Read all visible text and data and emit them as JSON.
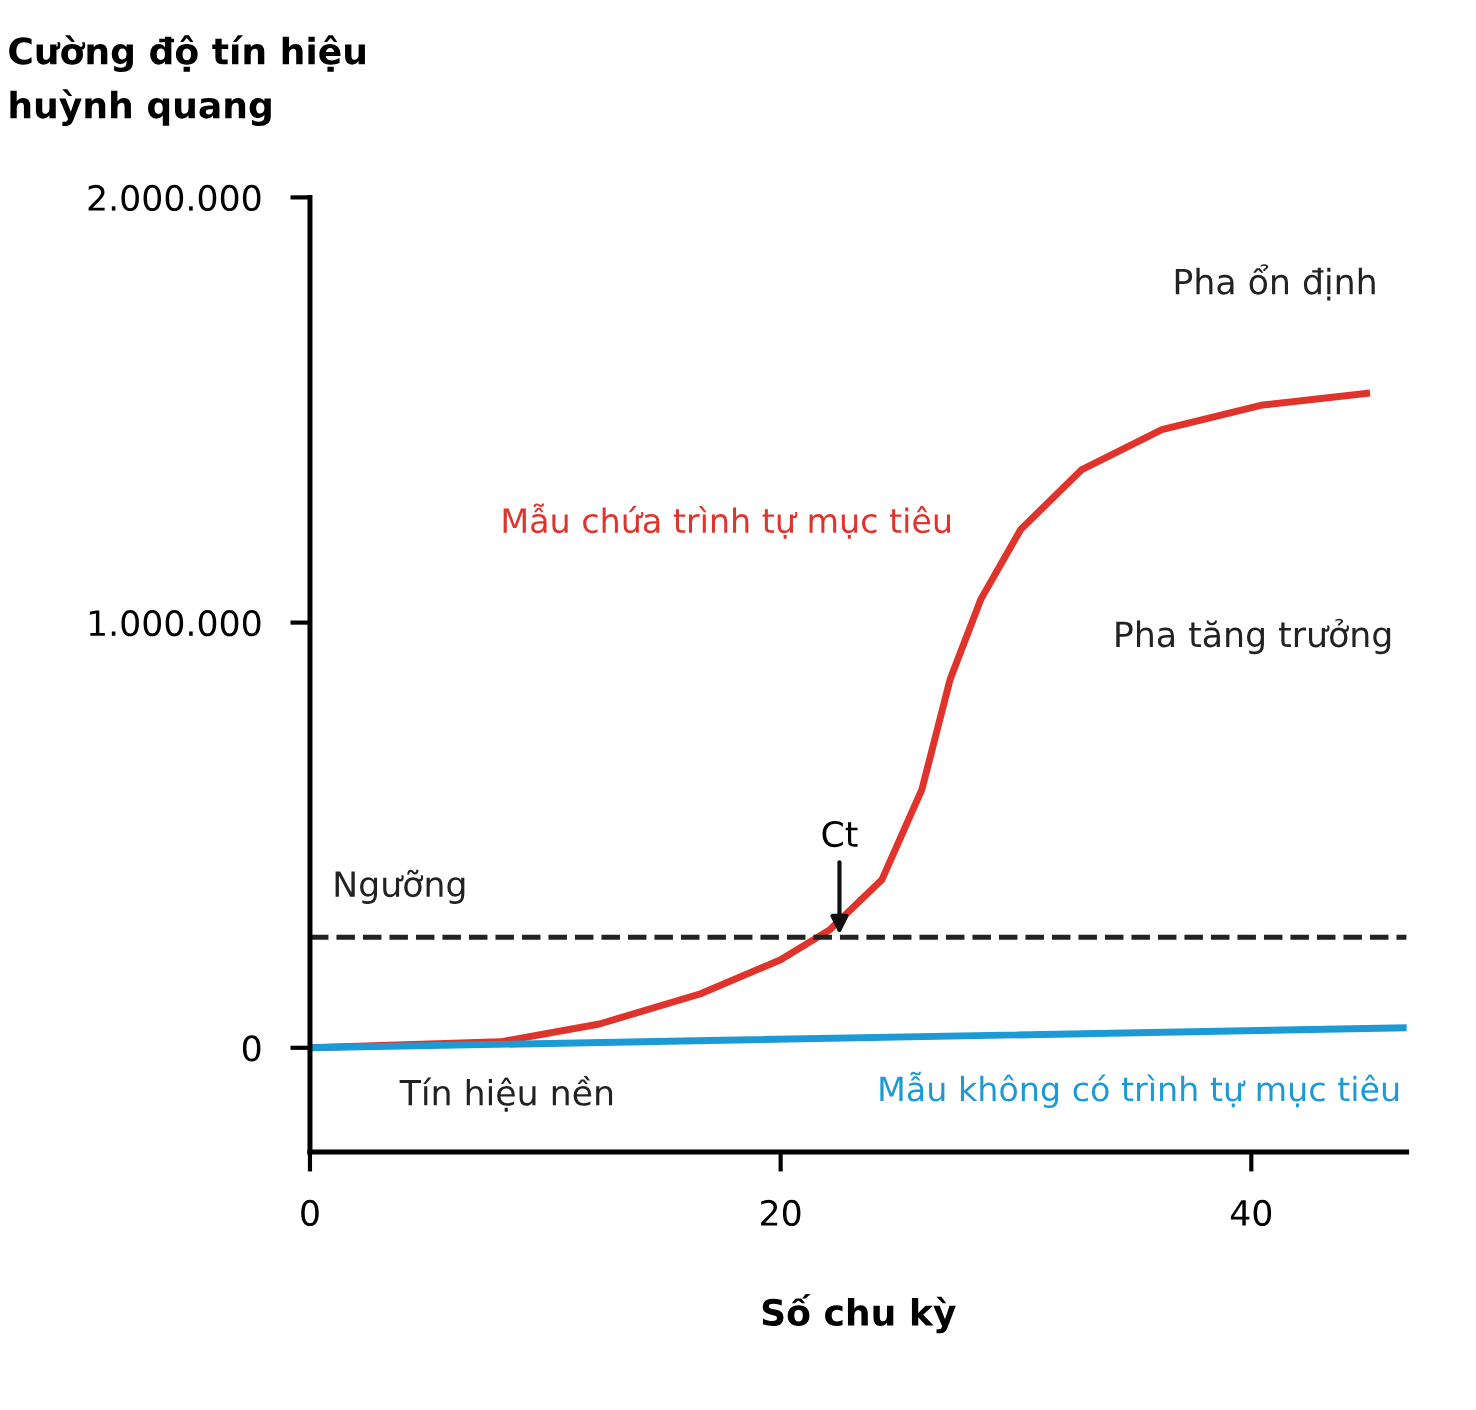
{
  "chart_data": {
    "type": "line",
    "xlabel": "Số chu kỳ",
    "ylabel": "Cường độ tín hiệu\nhuỳnh quang",
    "xlim": [
      0,
      46.6
    ],
    "xticks": [
      0,
      20,
      40
    ],
    "ylim": [
      -245000,
      2000000
    ],
    "yticks": [
      {
        "value": 0,
        "label": "0"
      },
      {
        "value": 1000000,
        "label": "1.000.000"
      },
      {
        "value": 2000000,
        "label": "2.000.000"
      }
    ],
    "grid": false,
    "legend": false,
    "marker": "none",
    "line_style": "solid",
    "series": [
      {
        "name": "Mẫu chứa trình tự mục tiêu",
        "color": "#e0332b",
        "x": [
          0,
          8.1,
          12.3,
          16.6,
          20,
          22.1,
          24.3,
          26,
          27.2,
          28.5,
          30.2,
          32.8,
          36.2,
          40.4,
          44.9
        ],
        "values": [
          0,
          14000,
          56000,
          127000,
          207000,
          278000,
          395000,
          607000,
          866000,
          1054000,
          1219000,
          1360000,
          1454000,
          1511000,
          1539000
        ]
      },
      {
        "name": "Mẫu không có trình tự mục tiêu",
        "color": "#1c9ad6",
        "x": [
          0,
          46.6
        ],
        "values": [
          0,
          47000
        ]
      }
    ],
    "ref_lines": [
      {
        "axis": "y",
        "value": 260000,
        "label": "Ngưỡng",
        "color": "#222222",
        "line_style": "dashed"
      }
    ],
    "annotations": [
      {
        "text": "Ct",
        "x": 22.5,
        "y": 260000
      },
      "Pha ổn định",
      "Pha tăng trưởng",
      "Tín hiệu nền"
    ]
  }
}
